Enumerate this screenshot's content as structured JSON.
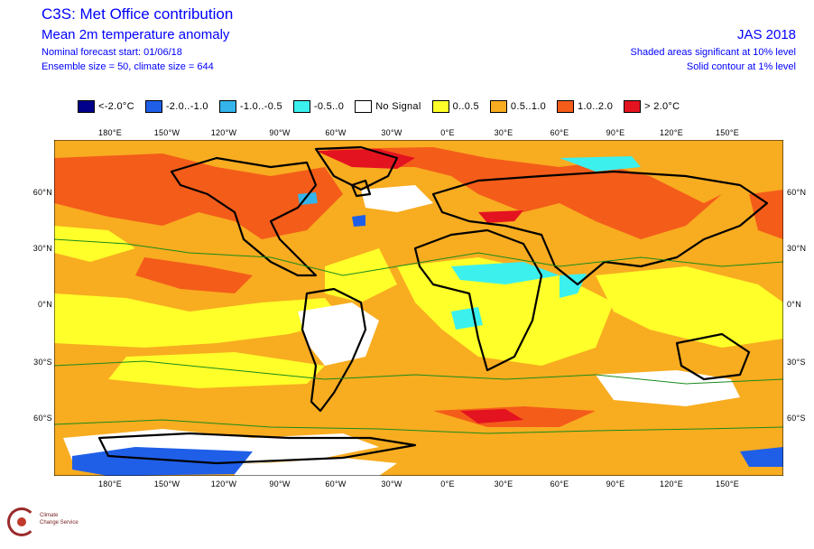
{
  "header": {
    "title": "C3S: Met Office contribution",
    "subtitle": "Mean 2m temperature anomaly",
    "forecast_start": "Nominal forecast start: 01/06/18",
    "ensemble": "Ensemble size = 50, climate size = 644",
    "period": "JAS 2018",
    "sig_note_1": "Shaded areas significant at 10% level",
    "sig_note_2": "Solid contour at 1% level"
  },
  "legend": [
    {
      "label": "<-2.0°C",
      "color": "#00008b"
    },
    {
      "label": "-2.0..-1.0",
      "color": "#1f5fe8"
    },
    {
      "label": "-1.0..-0.5",
      "color": "#34b4ea"
    },
    {
      "label": "-0.5..0",
      "color": "#3cf0ee"
    },
    {
      "label": "No Signal",
      "color": "#ffffff"
    },
    {
      "label": "0..0.5",
      "color": "#ffff2a"
    },
    {
      "label": "0.5..1.0",
      "color": "#f8ac20"
    },
    {
      "label": "1.0..2.0",
      "color": "#f45c1a"
    },
    {
      "label": "> 2.0°C",
      "color": "#e41320"
    }
  ],
  "lon_labels": [
    "180°E",
    "150°W",
    "120°W",
    "90°W",
    "60°W",
    "30°W",
    "0°E",
    "30°E",
    "60°E",
    "90°E",
    "120°E",
    "150°E"
  ],
  "lat_labels": [
    "60°N",
    "30°N",
    "0°N",
    "30°S",
    "60°S"
  ],
  "logo": {
    "line1": "Climate",
    "line2": "Change Service",
    "line3": ""
  }
}
